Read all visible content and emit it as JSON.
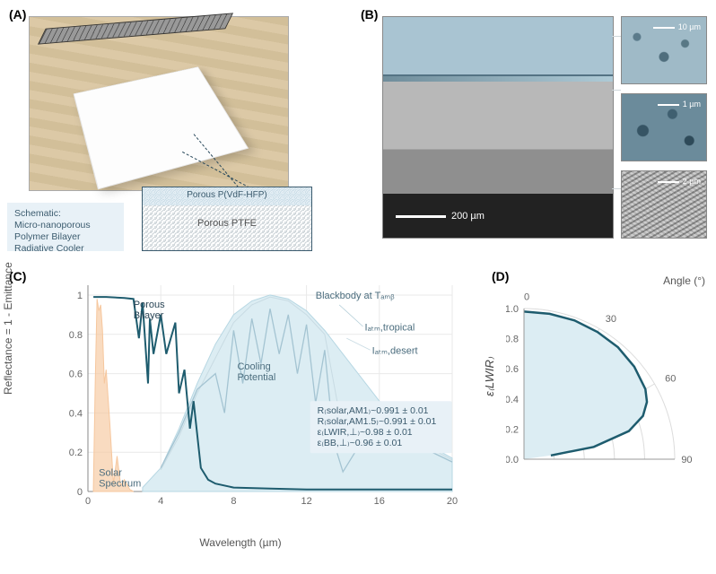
{
  "labels": {
    "A": "(A)",
    "B": "(B)",
    "C": "(C)",
    "D": "(D)"
  },
  "panelA": {
    "schematic_title": "Schematic:",
    "schematic_line1": "Micro-nanoporous",
    "schematic_line2": "Polymer Bilayer",
    "schematic_line3": "Radiative Cooler",
    "top_layer": "Porous P(VdF-HFP)",
    "bottom_layer": "Porous PTFE"
  },
  "panelB": {
    "main_scale": "200 µm",
    "t1_scale": "10 µm",
    "t2_scale": "1 µm",
    "t3_scale": "2 µm"
  },
  "panelC": {
    "type": "line",
    "xlabel": "Wavelength (µm)",
    "ylabel": "Reflectance = 1 - Emittance",
    "xlim": [
      0,
      20
    ],
    "ylim": [
      0,
      1.05
    ],
    "xticks": [
      0,
      4,
      8,
      12,
      16,
      20
    ],
    "yticks": [
      0,
      0.2,
      0.4,
      0.6,
      0.8,
      1
    ],
    "background_color": "#ffffff",
    "grid_color": "#e9e9e9",
    "colors": {
      "solar": "#f6c79e",
      "bilayer": "#1e5c6e",
      "blackbody_fill": "#dcedf3",
      "blackbody_stroke": "#b7d7e3",
      "atm_tropical": "#a4c4d2",
      "atm_desert": "#c8dbe3"
    },
    "annotations": {
      "porous_bilayer": "Porous\nBilayer",
      "blackbody": "Blackbody at Tₐₘᵦ",
      "i_tropical": "Iₐₜₘ,tropical",
      "i_desert": "Iₐₜₘ,desert",
      "cooling": "Cooling\nPotential",
      "solar": "Solar\nSpectrum"
    },
    "stats": [
      "R₍solar,AM1₎~0.991 ± 0.01",
      "R₍solar,AM1.5₎~0.991 ± 0.01",
      "ε₍LWIR,⊥₎~0.98 ± 0.01",
      "ε₍BB,⊥₎~0.96 ± 0.01"
    ],
    "solar_x": [
      0.3,
      0.4,
      0.5,
      0.6,
      0.7,
      0.8,
      0.9,
      1.0,
      1.2,
      1.4,
      1.6,
      1.8,
      2.0,
      2.3,
      2.5
    ],
    "solar_y": [
      0.02,
      0.55,
      0.98,
      0.92,
      0.95,
      0.82,
      0.55,
      0.62,
      0.35,
      0.04,
      0.18,
      0.03,
      0.06,
      0.01,
      0.0
    ],
    "bilayer_x": [
      0.3,
      1.0,
      2.0,
      2.5,
      2.8,
      3.0,
      3.3,
      3.4,
      3.6,
      4.0,
      4.3,
      4.8,
      5.0,
      5.3,
      5.6,
      5.8,
      6.2,
      6.6,
      7.0,
      8.0,
      10,
      12,
      14,
      16,
      18,
      20
    ],
    "bilayer_y": [
      0.99,
      0.99,
      0.985,
      0.98,
      0.78,
      0.96,
      0.55,
      0.88,
      0.7,
      0.9,
      0.7,
      0.86,
      0.5,
      0.62,
      0.32,
      0.46,
      0.12,
      0.06,
      0.04,
      0.02,
      0.015,
      0.01,
      0.01,
      0.01,
      0.01,
      0.01
    ],
    "blackbody_x": [
      3,
      4,
      5,
      6,
      7,
      8,
      9,
      10,
      11,
      12,
      13,
      14,
      15,
      16,
      17,
      18,
      19,
      20
    ],
    "blackbody_y": [
      0.02,
      0.12,
      0.32,
      0.55,
      0.75,
      0.9,
      0.97,
      1.0,
      0.98,
      0.92,
      0.82,
      0.7,
      0.58,
      0.46,
      0.36,
      0.28,
      0.22,
      0.17
    ],
    "atm_trop_x": [
      4,
      5,
      6,
      7,
      7.5,
      8,
      8.5,
      9,
      9.5,
      10,
      10.5,
      11,
      11.5,
      12,
      12.5,
      13,
      13.5,
      14,
      16,
      18,
      20
    ],
    "atm_trop_y": [
      0.12,
      0.3,
      0.52,
      0.6,
      0.4,
      0.82,
      0.55,
      0.88,
      0.65,
      0.93,
      0.7,
      0.9,
      0.6,
      0.85,
      0.45,
      0.72,
      0.25,
      0.1,
      0.4,
      0.24,
      0.15
    ],
    "atm_des_x": [
      4,
      5,
      6,
      7,
      8,
      9,
      10,
      11,
      12,
      13,
      14,
      16,
      18,
      20
    ],
    "atm_des_y": [
      0.11,
      0.28,
      0.5,
      0.68,
      0.86,
      0.95,
      0.99,
      0.97,
      0.9,
      0.8,
      0.3,
      0.44,
      0.26,
      0.16
    ]
  },
  "panelD": {
    "type": "polar-quarter",
    "ylabel": "ε₍LWIR₎",
    "angle_label": "Angle (°)",
    "angle_ticks": [
      0,
      30,
      60,
      90
    ],
    "r_ticks": [
      0,
      0.2,
      0.4,
      0.6,
      0.8,
      1.0
    ],
    "colors": {
      "fill": "#dcedf3",
      "line": "#1e5c6e",
      "grid": "#dcdcdc"
    },
    "angles_deg": [
      0,
      10,
      20,
      30,
      40,
      50,
      60,
      65,
      70,
      75,
      80,
      82
    ],
    "eps": [
      0.98,
      0.98,
      0.98,
      0.975,
      0.97,
      0.955,
      0.93,
      0.9,
      0.84,
      0.72,
      0.47,
      0.18
    ]
  }
}
